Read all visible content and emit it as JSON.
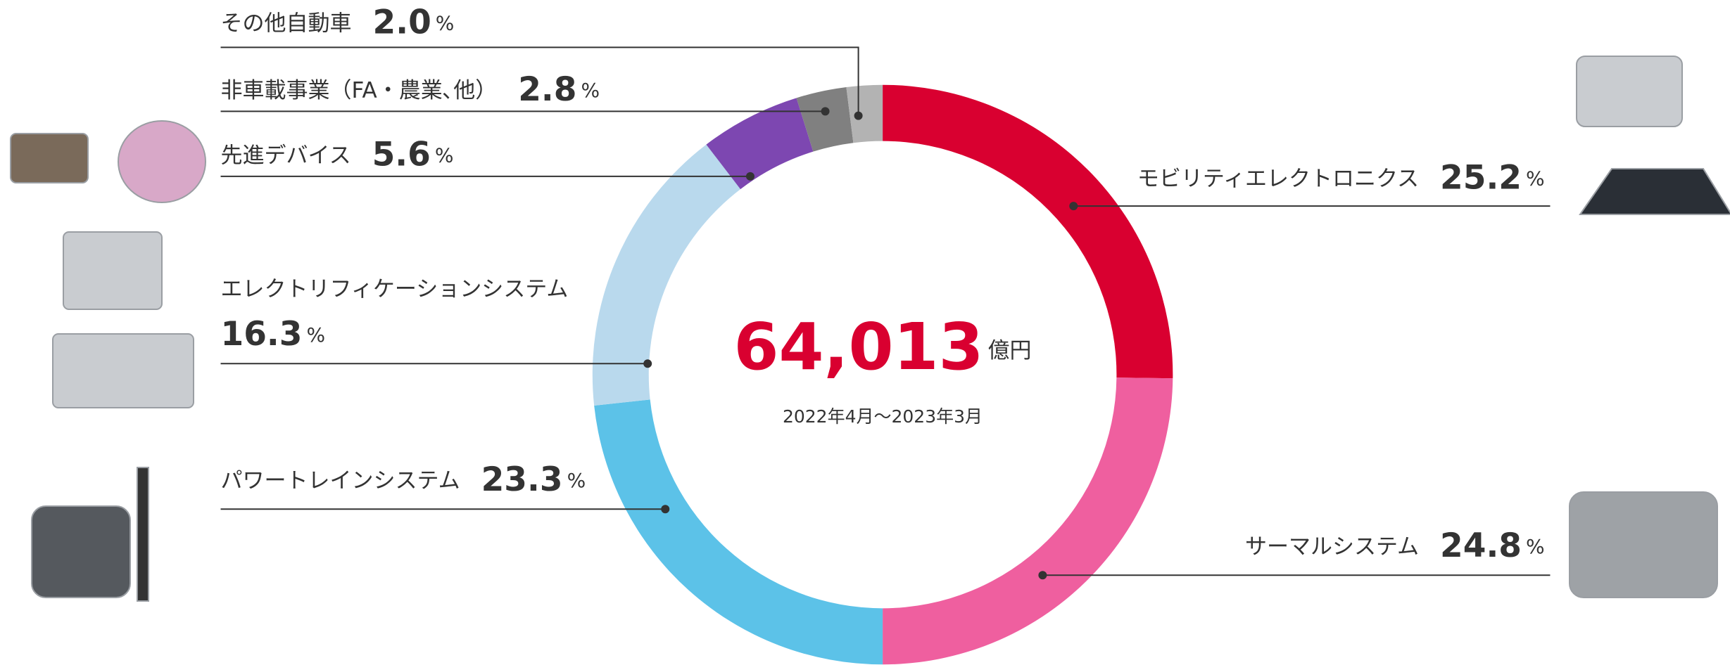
{
  "chart_data": {
    "type": "donut",
    "total": {
      "value": 64013,
      "label": "64,013"
    },
    "total_unit": "億円",
    "period": "2022年4月～2023年3月",
    "unit": "%",
    "categories": [
      "モビリティエレクトロニクス",
      "サーマルシステム",
      "パワートレインシステム",
      "エレクトリフィケーションシステム",
      "先進デバイス",
      "非車載事業（FA・農業､他）",
      "その他自動車"
    ],
    "values": [
      25.2,
      24.8,
      23.3,
      16.3,
      5.6,
      2.8,
      2.0
    ],
    "value_labels": [
      "25.2",
      "24.8",
      "23.3",
      "16.3",
      "5.6",
      "2.8",
      "2.0"
    ],
    "colors": [
      "#d90030",
      "#ef5f9f",
      "#5cc2e8",
      "#b9d9ed",
      "#7d47b1",
      "#808080",
      "#b3b3b3"
    ]
  }
}
